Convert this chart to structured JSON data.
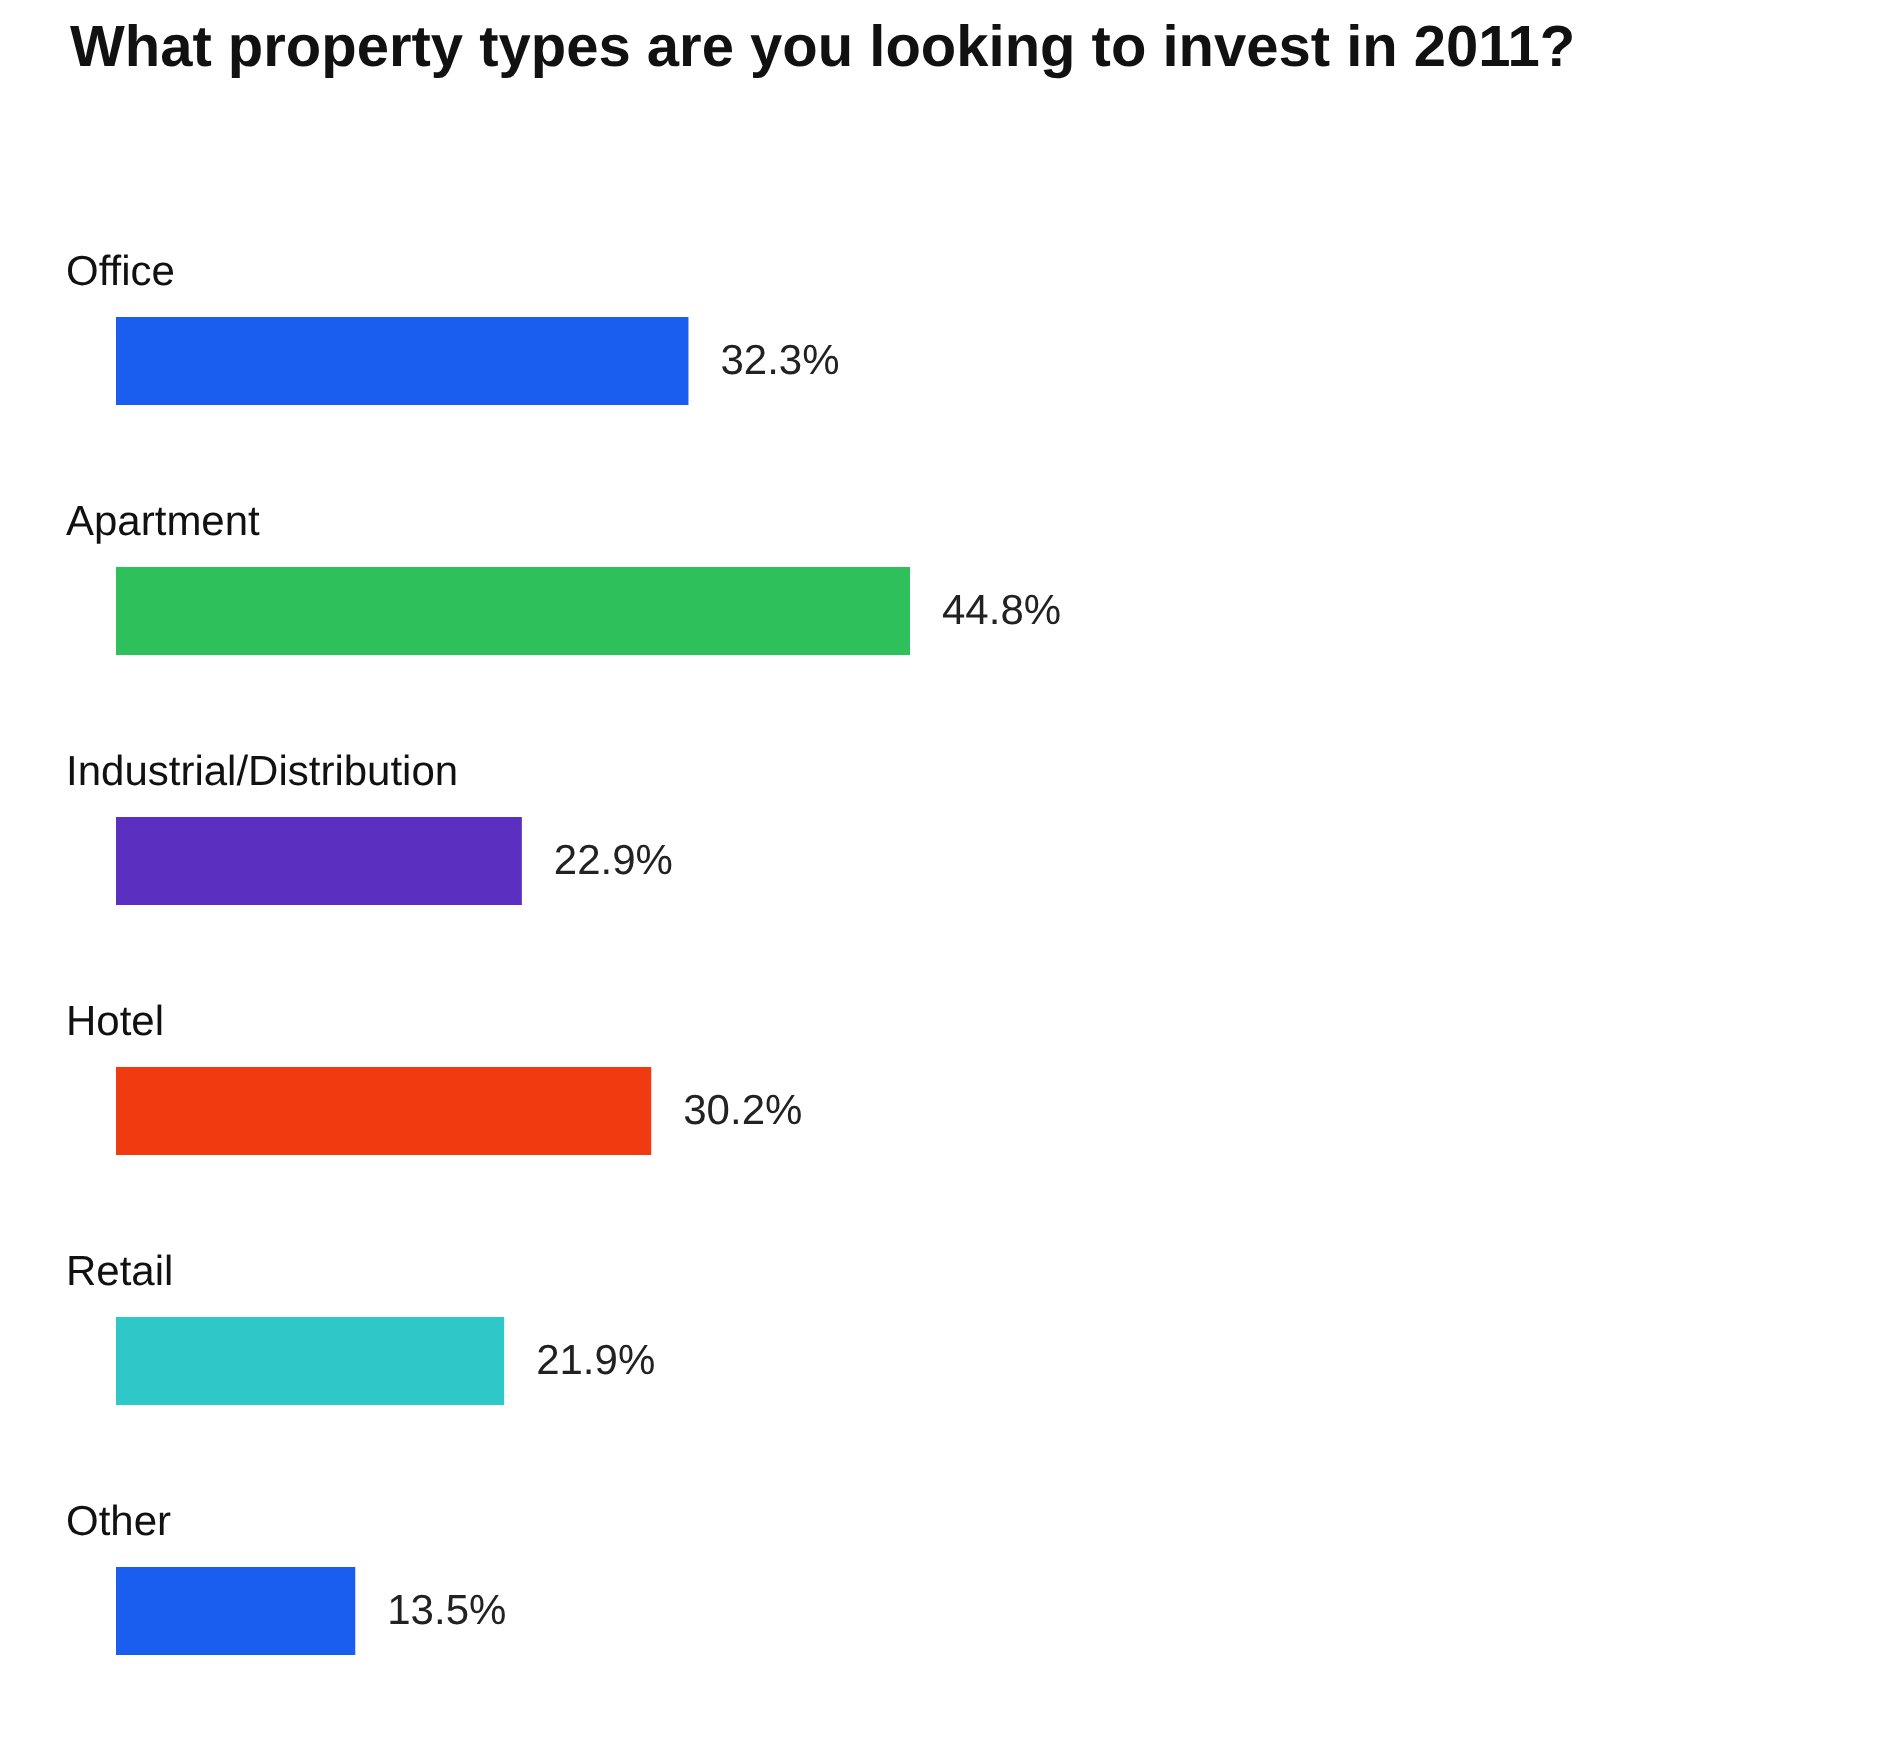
{
  "chart_data": {
    "type": "bar",
    "orientation": "horizontal",
    "title": "What property types are you looking to invest in 2011?",
    "categories": [
      "Office",
      "Apartment",
      "Industrial/Distribution",
      "Hotel",
      "Retail",
      "Other"
    ],
    "values": [
      32.3,
      44.8,
      22.9,
      30.2,
      21.9,
      13.5
    ],
    "colors": [
      "#1a5ef0",
      "#2ec05a",
      "#5b2fc0",
      "#f03a10",
      "#2ec8c8",
      "#1a5ef0"
    ],
    "value_labels": [
      "32.3%",
      "44.8%",
      "22.9%",
      "30.2%",
      "21.9%",
      "13.5%"
    ],
    "tick_labels": "y"
  }
}
